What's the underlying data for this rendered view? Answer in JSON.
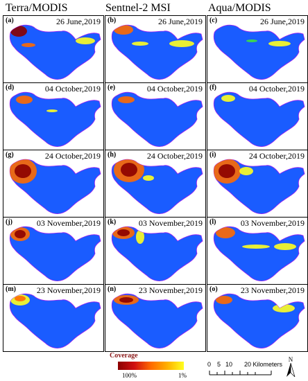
{
  "columns": [
    "Terra/MODIS",
    "Sentnel-2 MSI",
    "Aqua/MODIS"
  ],
  "rows": [
    {
      "date": "26 June,2019",
      "labels": [
        "(a)",
        "(b)",
        "(c)"
      ]
    },
    {
      "date": "04 October,2019",
      "labels": [
        "(d)",
        "(e)",
        "(f)"
      ]
    },
    {
      "date": "24 October,2019",
      "labels": [
        "(g)",
        "(h)",
        "(i)"
      ]
    },
    {
      "date": "03 November,2019",
      "labels": [
        "(j)",
        "(k)",
        "(l)"
      ]
    },
    {
      "date": "23 November,2019",
      "labels": [
        "(m)",
        "(n)",
        "(o)"
      ]
    }
  ],
  "legend": {
    "title": "Coverage",
    "high": "100%",
    "low": "1%"
  },
  "scale": {
    "ticks": [
      "0",
      "5",
      "10",
      "20 Kilometers"
    ]
  },
  "north": "N",
  "colors": {
    "water": "#1a5cff",
    "high": "#8b0000",
    "mid": "#ff6a00",
    "low": "#ffff20",
    "edge": "#40e040"
  }
}
